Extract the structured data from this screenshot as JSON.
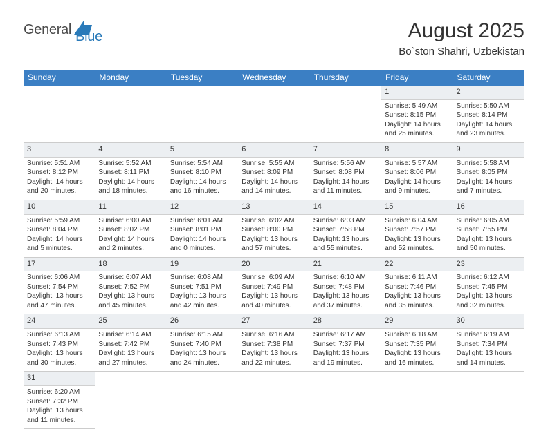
{
  "logo": {
    "dark": "General",
    "blue": "Blue"
  },
  "title": "August 2025",
  "location": "Bo`ston Shahri, Uzbekistan",
  "headerColor": "#3b7fc4",
  "weekdays": [
    "Sunday",
    "Monday",
    "Tuesday",
    "Wednesday",
    "Thursday",
    "Friday",
    "Saturday"
  ],
  "weeks": [
    [
      null,
      null,
      null,
      null,
      null,
      {
        "d": "1",
        "sr": "Sunrise: 5:49 AM",
        "ss": "Sunset: 8:15 PM",
        "dl1": "Daylight: 14 hours",
        "dl2": "and 25 minutes."
      },
      {
        "d": "2",
        "sr": "Sunrise: 5:50 AM",
        "ss": "Sunset: 8:14 PM",
        "dl1": "Daylight: 14 hours",
        "dl2": "and 23 minutes."
      }
    ],
    [
      {
        "d": "3",
        "sr": "Sunrise: 5:51 AM",
        "ss": "Sunset: 8:12 PM",
        "dl1": "Daylight: 14 hours",
        "dl2": "and 20 minutes."
      },
      {
        "d": "4",
        "sr": "Sunrise: 5:52 AM",
        "ss": "Sunset: 8:11 PM",
        "dl1": "Daylight: 14 hours",
        "dl2": "and 18 minutes."
      },
      {
        "d": "5",
        "sr": "Sunrise: 5:54 AM",
        "ss": "Sunset: 8:10 PM",
        "dl1": "Daylight: 14 hours",
        "dl2": "and 16 minutes."
      },
      {
        "d": "6",
        "sr": "Sunrise: 5:55 AM",
        "ss": "Sunset: 8:09 PM",
        "dl1": "Daylight: 14 hours",
        "dl2": "and 14 minutes."
      },
      {
        "d": "7",
        "sr": "Sunrise: 5:56 AM",
        "ss": "Sunset: 8:08 PM",
        "dl1": "Daylight: 14 hours",
        "dl2": "and 11 minutes."
      },
      {
        "d": "8",
        "sr": "Sunrise: 5:57 AM",
        "ss": "Sunset: 8:06 PM",
        "dl1": "Daylight: 14 hours",
        "dl2": "and 9 minutes."
      },
      {
        "d": "9",
        "sr": "Sunrise: 5:58 AM",
        "ss": "Sunset: 8:05 PM",
        "dl1": "Daylight: 14 hours",
        "dl2": "and 7 minutes."
      }
    ],
    [
      {
        "d": "10",
        "sr": "Sunrise: 5:59 AM",
        "ss": "Sunset: 8:04 PM",
        "dl1": "Daylight: 14 hours",
        "dl2": "and 5 minutes."
      },
      {
        "d": "11",
        "sr": "Sunrise: 6:00 AM",
        "ss": "Sunset: 8:02 PM",
        "dl1": "Daylight: 14 hours",
        "dl2": "and 2 minutes."
      },
      {
        "d": "12",
        "sr": "Sunrise: 6:01 AM",
        "ss": "Sunset: 8:01 PM",
        "dl1": "Daylight: 14 hours",
        "dl2": "and 0 minutes."
      },
      {
        "d": "13",
        "sr": "Sunrise: 6:02 AM",
        "ss": "Sunset: 8:00 PM",
        "dl1": "Daylight: 13 hours",
        "dl2": "and 57 minutes."
      },
      {
        "d": "14",
        "sr": "Sunrise: 6:03 AM",
        "ss": "Sunset: 7:58 PM",
        "dl1": "Daylight: 13 hours",
        "dl2": "and 55 minutes."
      },
      {
        "d": "15",
        "sr": "Sunrise: 6:04 AM",
        "ss": "Sunset: 7:57 PM",
        "dl1": "Daylight: 13 hours",
        "dl2": "and 52 minutes."
      },
      {
        "d": "16",
        "sr": "Sunrise: 6:05 AM",
        "ss": "Sunset: 7:55 PM",
        "dl1": "Daylight: 13 hours",
        "dl2": "and 50 minutes."
      }
    ],
    [
      {
        "d": "17",
        "sr": "Sunrise: 6:06 AM",
        "ss": "Sunset: 7:54 PM",
        "dl1": "Daylight: 13 hours",
        "dl2": "and 47 minutes."
      },
      {
        "d": "18",
        "sr": "Sunrise: 6:07 AM",
        "ss": "Sunset: 7:52 PM",
        "dl1": "Daylight: 13 hours",
        "dl2": "and 45 minutes."
      },
      {
        "d": "19",
        "sr": "Sunrise: 6:08 AM",
        "ss": "Sunset: 7:51 PM",
        "dl1": "Daylight: 13 hours",
        "dl2": "and 42 minutes."
      },
      {
        "d": "20",
        "sr": "Sunrise: 6:09 AM",
        "ss": "Sunset: 7:49 PM",
        "dl1": "Daylight: 13 hours",
        "dl2": "and 40 minutes."
      },
      {
        "d": "21",
        "sr": "Sunrise: 6:10 AM",
        "ss": "Sunset: 7:48 PM",
        "dl1": "Daylight: 13 hours",
        "dl2": "and 37 minutes."
      },
      {
        "d": "22",
        "sr": "Sunrise: 6:11 AM",
        "ss": "Sunset: 7:46 PM",
        "dl1": "Daylight: 13 hours",
        "dl2": "and 35 minutes."
      },
      {
        "d": "23",
        "sr": "Sunrise: 6:12 AM",
        "ss": "Sunset: 7:45 PM",
        "dl1": "Daylight: 13 hours",
        "dl2": "and 32 minutes."
      }
    ],
    [
      {
        "d": "24",
        "sr": "Sunrise: 6:13 AM",
        "ss": "Sunset: 7:43 PM",
        "dl1": "Daylight: 13 hours",
        "dl2": "and 30 minutes."
      },
      {
        "d": "25",
        "sr": "Sunrise: 6:14 AM",
        "ss": "Sunset: 7:42 PM",
        "dl1": "Daylight: 13 hours",
        "dl2": "and 27 minutes."
      },
      {
        "d": "26",
        "sr": "Sunrise: 6:15 AM",
        "ss": "Sunset: 7:40 PM",
        "dl1": "Daylight: 13 hours",
        "dl2": "and 24 minutes."
      },
      {
        "d": "27",
        "sr": "Sunrise: 6:16 AM",
        "ss": "Sunset: 7:38 PM",
        "dl1": "Daylight: 13 hours",
        "dl2": "and 22 minutes."
      },
      {
        "d": "28",
        "sr": "Sunrise: 6:17 AM",
        "ss": "Sunset: 7:37 PM",
        "dl1": "Daylight: 13 hours",
        "dl2": "and 19 minutes."
      },
      {
        "d": "29",
        "sr": "Sunrise: 6:18 AM",
        "ss": "Sunset: 7:35 PM",
        "dl1": "Daylight: 13 hours",
        "dl2": "and 16 minutes."
      },
      {
        "d": "30",
        "sr": "Sunrise: 6:19 AM",
        "ss": "Sunset: 7:34 PM",
        "dl1": "Daylight: 13 hours",
        "dl2": "and 14 minutes."
      }
    ],
    [
      {
        "d": "31",
        "sr": "Sunrise: 6:20 AM",
        "ss": "Sunset: 7:32 PM",
        "dl1": "Daylight: 13 hours",
        "dl2": "and 11 minutes."
      },
      null,
      null,
      null,
      null,
      null,
      null
    ]
  ]
}
